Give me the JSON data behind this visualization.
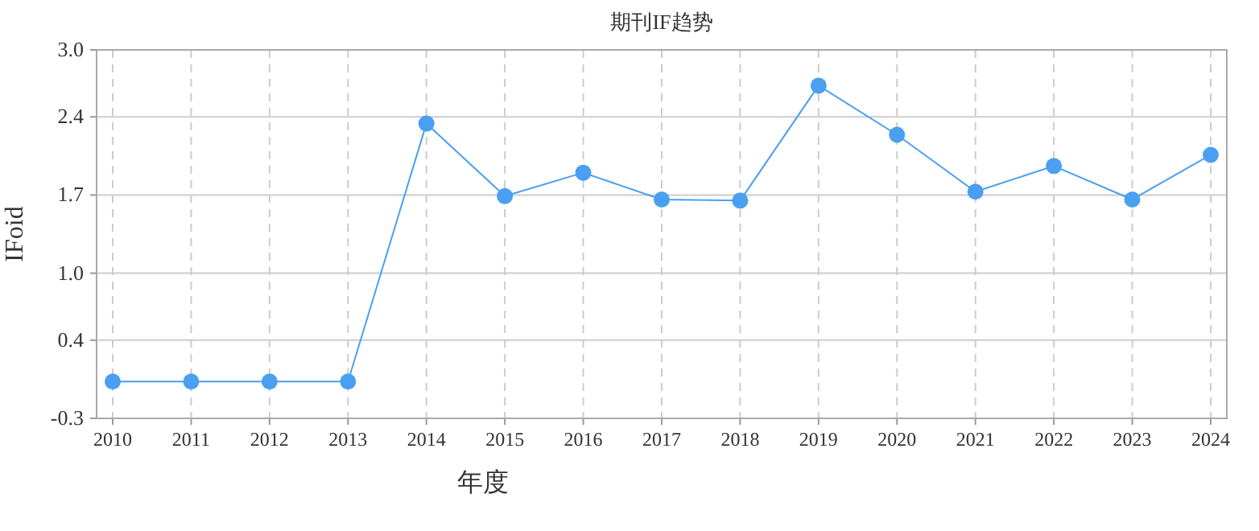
{
  "chart_data": {
    "type": "line",
    "title": "期刊IF趋势",
    "xlabel": "年度",
    "ylabel": "IFoid",
    "categories": [
      "2010",
      "2011",
      "2012",
      "2013",
      "2014",
      "2015",
      "2016",
      "2017",
      "2018",
      "2019",
      "2020",
      "2021",
      "2022",
      "2023",
      "2024"
    ],
    "series": [
      {
        "color": "#4a9ff0",
        "values": [
          0.03,
          0.03,
          0.03,
          0.03,
          2.34,
          1.69,
          1.9,
          1.66,
          1.65,
          2.68,
          2.24,
          1.73,
          1.96,
          1.66,
          2.06
        ]
      }
    ],
    "ylim": [
      -0.3,
      3.0
    ],
    "yticks": [
      -0.3,
      0.4,
      {
        "value": 1.0,
        "label": "1.0"
      },
      1.7,
      2.4,
      {
        "value": 3.0,
        "label": "3.0"
      }
    ],
    "grid": true,
    "marker": "circle",
    "line_style": "solid"
  }
}
